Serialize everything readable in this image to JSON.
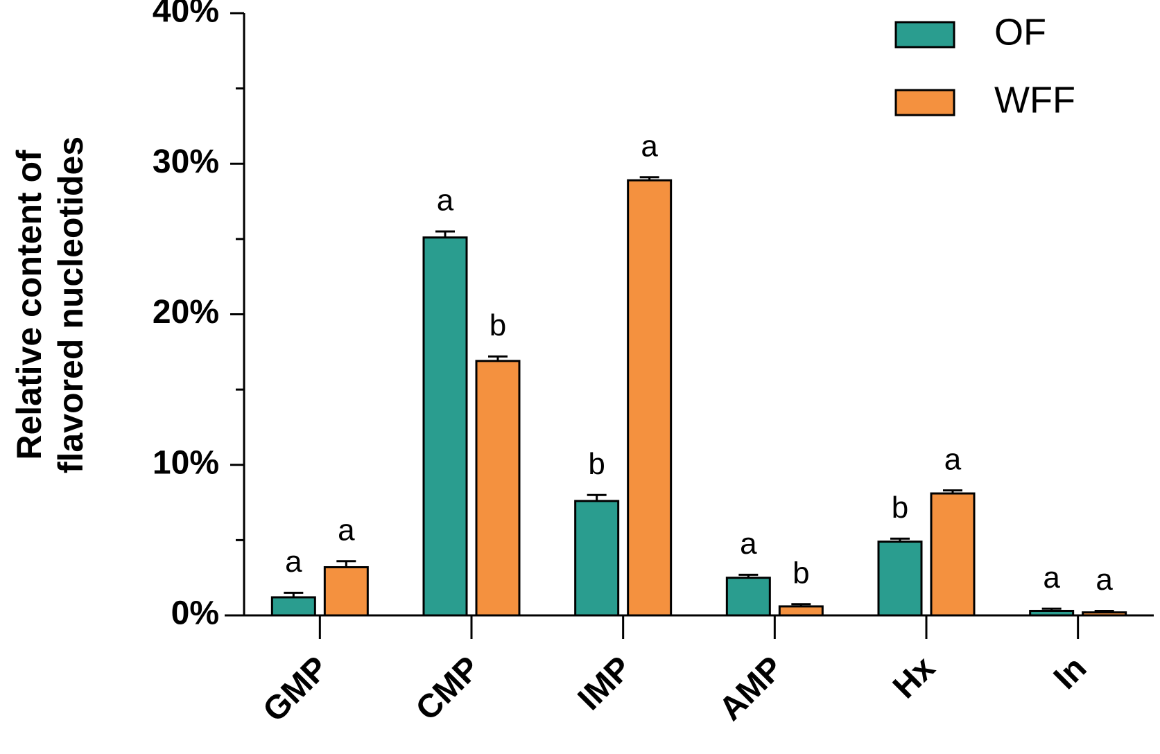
{
  "chart_data": {
    "type": "bar",
    "ylabel": [
      "Relative content of",
      "flavored nucleotides"
    ],
    "categories": [
      "GMP",
      "CMP",
      "IMP",
      "AMP",
      "Hx",
      "In"
    ],
    "series": [
      {
        "name": "OF",
        "color": "#2a9d8f",
        "values": [
          1.2,
          25.1,
          7.6,
          2.5,
          4.9,
          0.3
        ],
        "errors": [
          0.3,
          0.4,
          0.4,
          0.2,
          0.2,
          0.15
        ],
        "significance": [
          "a",
          "a",
          "b",
          "a",
          "b",
          "a"
        ]
      },
      {
        "name": "WFF",
        "color": "#f4913f",
        "values": [
          3.2,
          16.9,
          28.9,
          0.6,
          8.1,
          0.2
        ],
        "errors": [
          0.4,
          0.3,
          0.2,
          0.15,
          0.2,
          0.1
        ],
        "significance": [
          "a",
          "b",
          "a",
          "b",
          "a",
          "a"
        ]
      }
    ],
    "ylim": [
      0,
      40
    ],
    "yticks": [
      {
        "value": 0,
        "label": "0%"
      },
      {
        "value": 10,
        "label": "10%"
      },
      {
        "value": 20,
        "label": "20%"
      },
      {
        "value": 30,
        "label": "30%"
      },
      {
        "value": 40,
        "label": "40%"
      }
    ],
    "yminorticks": [
      5,
      15,
      25,
      35
    ],
    "grid": false,
    "legend": "top-right"
  }
}
